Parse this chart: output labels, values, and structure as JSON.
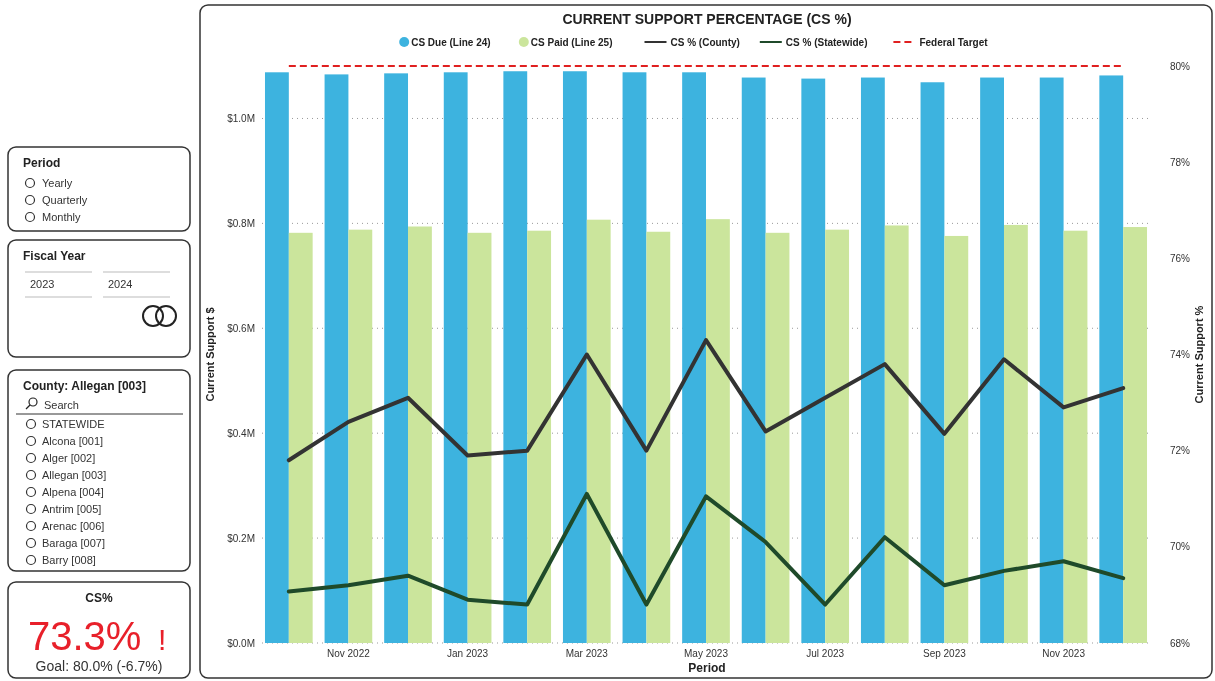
{
  "chart_data": [
    {
      "type": "bar",
      "title": "CURRENT SUPPORT PERCENTAGE (CS %)",
      "xlabel": "Period",
      "ylabel": "Current Support $",
      "y2label": "Current Support %",
      "categories": [
        null,
        "Nov 2022",
        null,
        "Jan 2023",
        null,
        "Mar 2023",
        null,
        "May 2023",
        null,
        "Jul 2023",
        null,
        "Sep 2023",
        null,
        "Nov 2023",
        null
      ],
      "series": [
        {
          "name": "CS Due (Line 24)",
          "type": "bar",
          "color": "#3db3df",
          "values": [
            1.088,
            1.084,
            1.086,
            1.088,
            1.09,
            1.09,
            1.088,
            1.088,
            1.078,
            1.076,
            1.078,
            1.069,
            1.078,
            1.078,
            1.082
          ]
        },
        {
          "name": "CS Paid (Line 25)",
          "type": "bar",
          "color": "#cbe59c",
          "values": [
            0.782,
            0.788,
            0.794,
            0.782,
            0.786,
            0.807,
            0.784,
            0.808,
            0.782,
            0.788,
            0.796,
            0.776,
            0.797,
            0.786,
            0.793
          ]
        },
        {
          "name": "CS % (County)",
          "type": "line",
          "axis": "y2",
          "color": "#333333",
          "values": [
            71.8,
            72.6,
            73.1,
            71.9,
            72.0,
            74.0,
            72.0,
            74.3,
            72.4,
            73.1,
            73.8,
            72.35,
            73.9,
            72.9,
            73.3
          ]
        },
        {
          "name": "CS % (Statewide)",
          "type": "line",
          "axis": "y2",
          "color": "#1f4a2a",
          "values": [
            69.07,
            69.2,
            69.4,
            68.9,
            68.8,
            71.1,
            68.8,
            71.05,
            70.1,
            68.8,
            70.2,
            69.2,
            69.5,
            69.7,
            69.35
          ]
        }
      ],
      "ref_lines": [
        {
          "axis": "y2",
          "value": 80,
          "label": "Federal Target",
          "color": "#e02020",
          "line_style": "dashed"
        }
      ],
      "ylim": [
        0,
        1.1
      ],
      "yticks": [
        {
          "value": 0,
          "label": "$0.0M"
        },
        {
          "value": 0.2,
          "label": "$0.2M"
        },
        {
          "value": 0.4,
          "label": "$0.4M"
        },
        {
          "value": 0.6,
          "label": "$0.6M"
        },
        {
          "value": 0.8,
          "label": "$0.8M"
        },
        {
          "value": 1.0,
          "label": "$1.0M"
        }
      ],
      "y2lim": [
        68,
        80
      ],
      "y2ticks": [
        {
          "value": 68,
          "label": "68%"
        },
        {
          "value": 70,
          "label": "70%"
        },
        {
          "value": 72,
          "label": "72%"
        },
        {
          "value": 74,
          "label": "74%"
        },
        {
          "value": 76,
          "label": "76%"
        },
        {
          "value": 78,
          "label": "78%"
        },
        {
          "value": 80,
          "label": "80%"
        }
      ],
      "grid": "y",
      "legend": "top",
      "line_style": "solid",
      "marker": "none"
    },
    {
      "type": "other",
      "title": "Period",
      "annotations": [
        "Yearly",
        "Quarterly",
        "Monthly"
      ]
    },
    {
      "type": "other",
      "title": "Fiscal Year",
      "annotations": [
        "2023",
        "2024"
      ]
    },
    {
      "type": "other",
      "title": "County: Allegan [003]",
      "annotations": [
        "Search",
        "STATEWIDE",
        "Alcona [001]",
        "Alger [002]",
        "Allegan [003]",
        "Alpena [004]",
        "Antrim [005]",
        "Arenac [006]",
        "Baraga [007]",
        "Barry [008]"
      ]
    },
    {
      "type": "other",
      "title": "CS%",
      "annotations": [
        "73.3%",
        "!",
        "Goal: 80.0% (-6.7%)"
      ]
    }
  ]
}
